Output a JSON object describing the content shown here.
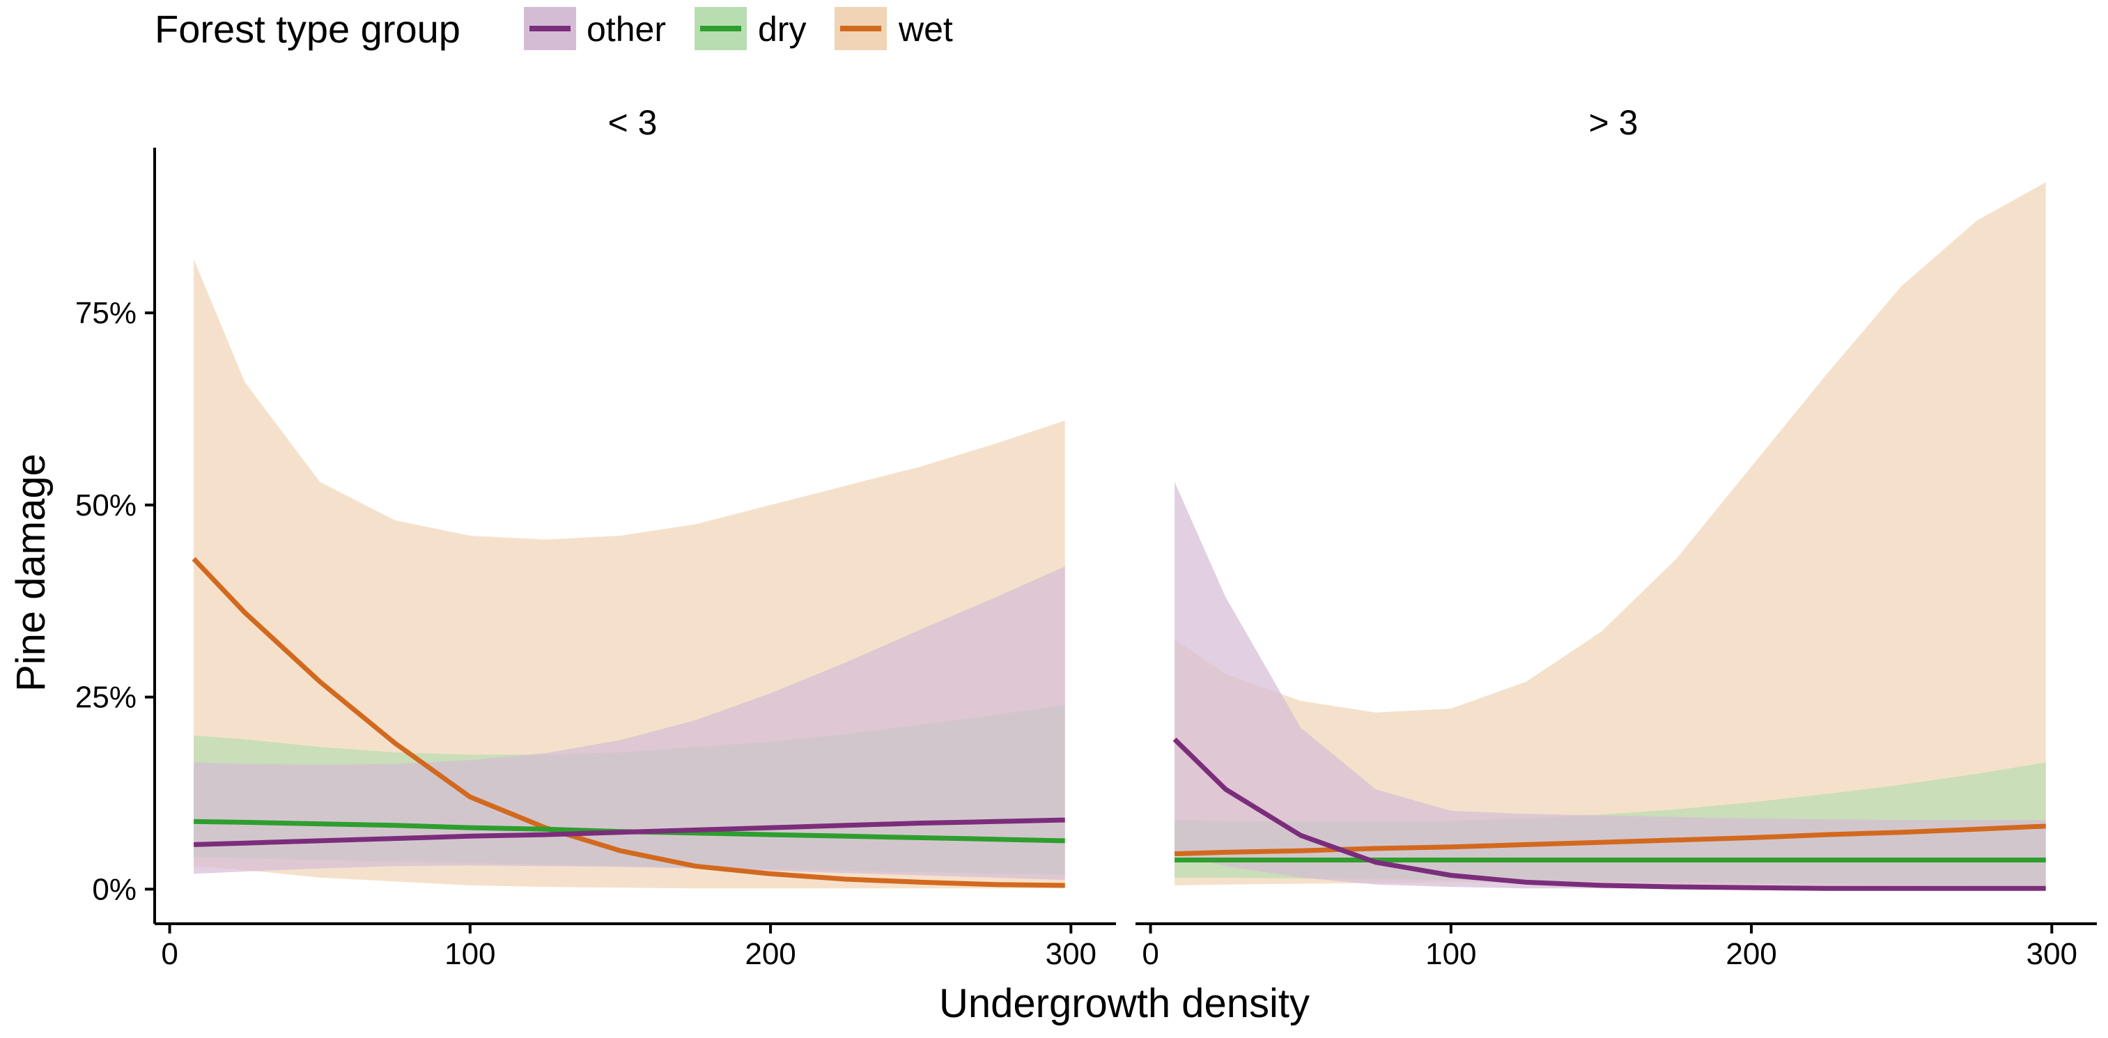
{
  "chart_data": {
    "type": "line",
    "xlabel": "Undergrowth density",
    "ylabel": "Pine damage",
    "xlim": [
      -5,
      315
    ],
    "ylim": [
      -4.5,
      96.5
    ],
    "x_ticks": [
      0,
      100,
      200,
      300
    ],
    "x_tick_labels": [
      "0",
      "100",
      "200",
      "300"
    ],
    "y_ticks": [
      0,
      25,
      50,
      75
    ],
    "y_tick_labels": [
      "0%",
      "25%",
      "50%",
      "75%"
    ],
    "grid": false,
    "legend": {
      "title": "Forest type group",
      "position": "top-left",
      "entries": [
        {
          "key": "other",
          "label": "other"
        },
        {
          "key": "dry",
          "label": "dry"
        },
        {
          "key": "wet",
          "label": "wet"
        }
      ]
    },
    "colors": {
      "other": {
        "line": "#7B2D7B",
        "fill": "#D5BCD5"
      },
      "dry": {
        "line": "#2E9E2E",
        "fill": "#B8DDB0"
      },
      "wet": {
        "line": "#D2691E",
        "fill": "#F1D4B5"
      }
    },
    "x": [
      8,
      25,
      50,
      75,
      100,
      125,
      150,
      175,
      200,
      225,
      250,
      275,
      298
    ],
    "panels": [
      {
        "strip": "< 3",
        "series": [
          {
            "key": "wet",
            "values": [
              43,
              36,
              27,
              19,
              12,
              8,
              5,
              3,
              2,
              1.3,
              0.9,
              0.6,
              0.5
            ],
            "lower": [
              3,
              2.5,
              1.5,
              1,
              0.5,
              0.3,
              0.2,
              0.1,
              0.1,
              0.1,
              0.1,
              0.1,
              0.1
            ],
            "upper": [
              82,
              66,
              53,
              48,
              46,
              45.5,
              46,
              47.5,
              50,
              52.5,
              55,
              58,
              61
            ]
          },
          {
            "key": "dry",
            "values": [
              8.8,
              8.7,
              8.5,
              8.3,
              8.0,
              7.8,
              7.5,
              7.3,
              7.1,
              6.9,
              6.7,
              6.5,
              6.3
            ],
            "lower": [
              4.2,
              4.0,
              3.8,
              3.6,
              3.4,
              3.2,
              3.0,
              2.8,
              2.6,
              2.4,
              2.2,
              2.0,
              1.9
            ],
            "upper": [
              20,
              19.5,
              18.5,
              17.8,
              17.5,
              17.5,
              17.8,
              18.5,
              19.2,
              20.2,
              21.4,
              22.7,
              24
            ]
          },
          {
            "key": "other",
            "values": [
              5.8,
              6.0,
              6.3,
              6.6,
              6.9,
              7.1,
              7.4,
              7.7,
              8.0,
              8.3,
              8.6,
              8.8,
              9.0
            ],
            "lower": [
              2.0,
              2.3,
              2.7,
              3.0,
              3.1,
              3.0,
              2.9,
              2.7,
              2.4,
              2.1,
              1.8,
              1.5,
              1.2
            ],
            "upper": [
              16.5,
              16.3,
              16.2,
              16.3,
              16.8,
              17.7,
              19.4,
              22,
              25.5,
              29.5,
              33.8,
              38,
              42
            ]
          }
        ]
      },
      {
        "strip": "> 3",
        "series": [
          {
            "key": "wet",
            "values": [
              4.6,
              4.8,
              5.0,
              5.3,
              5.5,
              5.8,
              6.1,
              6.4,
              6.7,
              7.1,
              7.4,
              7.8,
              8.2
            ],
            "lower": [
              0.5,
              0.6,
              0.7,
              0.8,
              0.9,
              0.8,
              0.7,
              0.6,
              0.5,
              0.4,
              0.3,
              0.3,
              0.2
            ],
            "upper": [
              32.5,
              28,
              24.5,
              23,
              23.5,
              27,
              33.5,
              43,
              55,
              67,
              78.5,
              87,
              92
            ]
          },
          {
            "key": "dry",
            "values": [
              3.8,
              3.8,
              3.8,
              3.8,
              3.8,
              3.8,
              3.8,
              3.8,
              3.8,
              3.8,
              3.8,
              3.8,
              3.8
            ],
            "lower": [
              1.5,
              1.5,
              1.4,
              1.3,
              1.2,
              1.1,
              1.0,
              0.9,
              0.8,
              0.7,
              0.6,
              0.5,
              0.5
            ],
            "upper": [
              9.0,
              8.9,
              8.8,
              8.8,
              8.9,
              9.2,
              9.7,
              10.4,
              11.3,
              12.4,
              13.6,
              15.0,
              16.5
            ]
          },
          {
            "key": "other",
            "values": [
              19.5,
              13,
              7,
              3.5,
              1.8,
              0.9,
              0.5,
              0.3,
              0.2,
              0.1,
              0.1,
              0.1,
              0.1
            ],
            "lower": [
              4.5,
              3,
              1.5,
              0.6,
              0.3,
              0.1,
              0.1,
              0.05,
              0.05,
              0.05,
              0.05,
              0.05,
              0.05
            ],
            "upper": [
              53,
              38,
              21,
              13,
              10.2,
              9.8,
              9.6,
              9.4,
              9.2,
              9.1,
              9.0,
              9.0,
              9.0
            ]
          }
        ]
      }
    ]
  }
}
